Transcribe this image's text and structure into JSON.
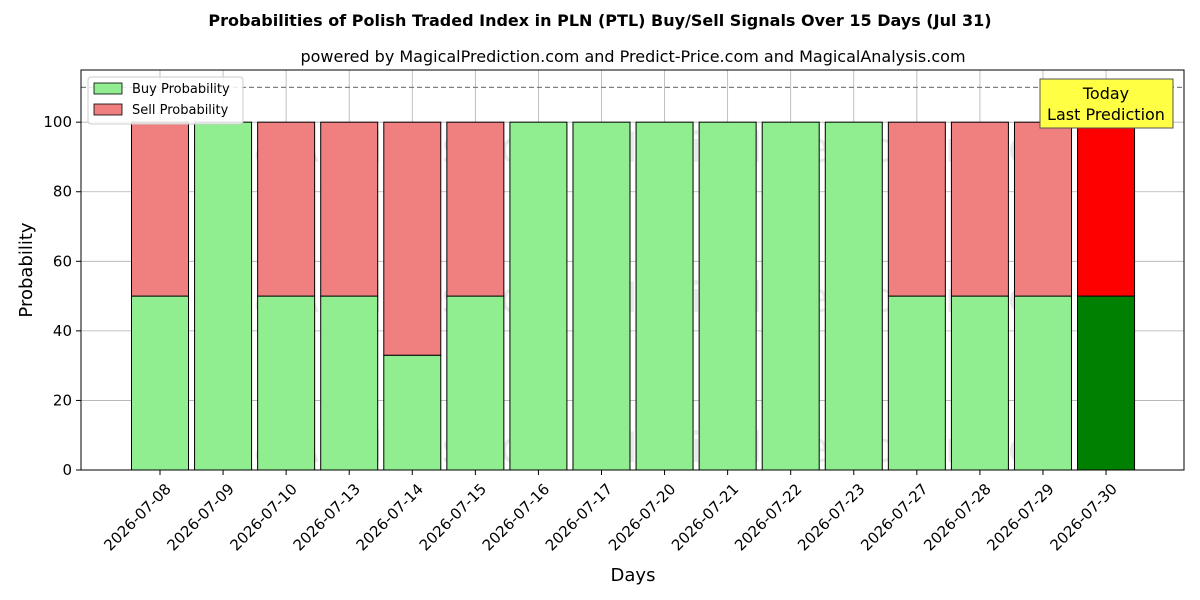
{
  "chart_data": {
    "type": "bar",
    "stacked": true,
    "title": "Probabilities of Polish Traded Index in PLN (PTL) Buy/Sell Signals Over 15 Days (Jul 31)",
    "subtitle": "powered by MagicalPrediction.com and Predict-Price.com and MagicalAnalysis.com",
    "xlabel": "Days",
    "ylabel": "Probability",
    "ylim": [
      0,
      115
    ],
    "yticks": [
      0,
      20,
      40,
      60,
      80,
      100
    ],
    "reference_line": 110,
    "grid": true,
    "legend_position": "top-left",
    "categories": [
      "2026-07-08",
      "2026-07-09",
      "2026-07-10",
      "2026-07-13",
      "2026-07-14",
      "2026-07-15",
      "2026-07-16",
      "2026-07-17",
      "2026-07-20",
      "2026-07-21",
      "2026-07-22",
      "2026-07-23",
      "2026-07-27",
      "2026-07-28",
      "2026-07-29",
      "2026-07-30"
    ],
    "series": [
      {
        "name": "Buy Probability",
        "color": "#90EE90",
        "values": [
          50,
          100,
          50,
          50,
          33,
          50,
          100,
          100,
          100,
          100,
          100,
          100,
          50,
          50,
          50,
          50
        ]
      },
      {
        "name": "Sell Probability",
        "color": "#F08080",
        "values": [
          50,
          0,
          50,
          50,
          67,
          50,
          0,
          0,
          0,
          0,
          0,
          0,
          50,
          50,
          50,
          50
        ]
      }
    ],
    "highlight": {
      "index": 15,
      "buy_color": "#008000",
      "sell_color": "#FF0000"
    },
    "annotation": {
      "text_line1": "Today",
      "text_line2": "Last Prediction",
      "background": "#FFFF44"
    },
    "watermarks": [
      "MagicalAnalysis.com",
      "MagicalPrediction.com"
    ]
  }
}
